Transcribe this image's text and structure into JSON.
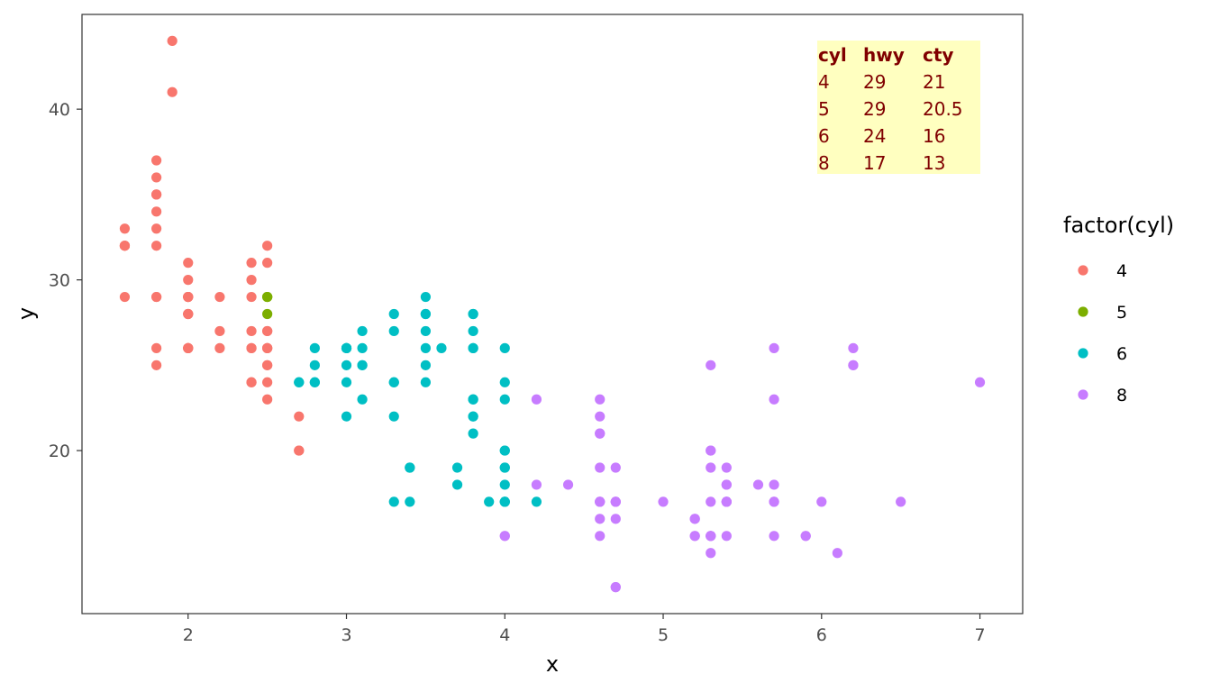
{
  "chart_data": {
    "type": "scatter",
    "xlabel": "x",
    "ylabel": "y",
    "xlim": [
      1.33,
      7.27
    ],
    "ylim": [
      10.45,
      45.55
    ],
    "x_ticks": [
      2,
      3,
      4,
      5,
      6,
      7
    ],
    "y_ticks": [
      20,
      30,
      40
    ],
    "grid": false,
    "legend": {
      "title": "factor(cyl)",
      "placement": "right",
      "entries": [
        "4",
        "5",
        "6",
        "8"
      ]
    },
    "series": [
      {
        "name": "4",
        "color": "#F8766D",
        "points": [
          [
            1.8,
            29
          ],
          [
            1.8,
            29
          ],
          [
            2.0,
            31
          ],
          [
            2.0,
            30
          ],
          [
            1.8,
            26
          ],
          [
            1.8,
            25
          ],
          [
            2.0,
            28
          ],
          [
            2.0,
            28
          ],
          [
            2.0,
            29
          ],
          [
            2.0,
            29
          ],
          [
            2.0,
            26
          ],
          [
            2.0,
            26
          ],
          [
            2.4,
            27
          ],
          [
            2.4,
            30
          ],
          [
            2.4,
            31
          ],
          [
            2.4,
            26
          ],
          [
            1.6,
            32
          ],
          [
            1.6,
            32
          ],
          [
            1.6,
            29
          ],
          [
            1.6,
            32
          ],
          [
            1.6,
            33
          ],
          [
            1.8,
            32
          ],
          [
            1.8,
            35
          ],
          [
            1.8,
            33
          ],
          [
            1.8,
            34
          ],
          [
            1.8,
            37
          ],
          [
            1.8,
            36
          ],
          [
            1.9,
            44
          ],
          [
            1.9,
            41
          ],
          [
            2.0,
            29
          ],
          [
            2.0,
            26
          ],
          [
            2.0,
            29
          ],
          [
            2.0,
            29
          ],
          [
            2.0,
            28
          ],
          [
            2.0,
            29
          ],
          [
            2.2,
            26
          ],
          [
            2.2,
            27
          ],
          [
            2.4,
            24
          ],
          [
            2.4,
            24
          ],
          [
            2.4,
            26
          ],
          [
            2.4,
            29
          ],
          [
            2.5,
            25
          ],
          [
            2.5,
            27
          ],
          [
            2.5,
            25
          ],
          [
            2.5,
            27
          ],
          [
            2.5,
            26
          ],
          [
            2.5,
            32
          ],
          [
            2.5,
            31
          ],
          [
            2.5,
            26
          ],
          [
            2.5,
            26
          ],
          [
            2.5,
            23
          ],
          [
            2.5,
            24
          ],
          [
            2.2,
            29
          ],
          [
            2.7,
            20
          ],
          [
            2.7,
            22
          ],
          [
            2.7,
            20
          ],
          [
            1.8,
            35
          ],
          [
            2.0,
            26
          ]
        ]
      },
      {
        "name": "5",
        "color": "#7CAE00",
        "points": [
          [
            2.5,
            29
          ],
          [
            2.5,
            29
          ],
          [
            2.5,
            28
          ],
          [
            2.5,
            29
          ]
        ]
      },
      {
        "name": "6",
        "color": "#00BFC4",
        "points": [
          [
            2.8,
            26
          ],
          [
            3.1,
            27
          ],
          [
            3.1,
            25
          ],
          [
            2.8,
            24
          ],
          [
            3.1,
            25
          ],
          [
            3.5,
            24
          ],
          [
            3.5,
            25
          ],
          [
            3.8,
            26
          ],
          [
            3.8,
            27
          ],
          [
            3.0,
            26
          ],
          [
            3.3,
            24
          ],
          [
            3.3,
            24
          ],
          [
            3.3,
            22
          ],
          [
            3.8,
            22
          ],
          [
            3.8,
            22
          ],
          [
            3.8,
            21
          ],
          [
            3.3,
            17
          ],
          [
            4.0,
            19
          ],
          [
            4.0,
            18
          ],
          [
            4.0,
            17
          ],
          [
            4.0,
            17
          ],
          [
            4.0,
            19
          ],
          [
            4.0,
            20
          ],
          [
            4.0,
            20
          ],
          [
            4.2,
            17
          ],
          [
            3.7,
            19
          ],
          [
            3.7,
            18
          ],
          [
            4.0,
            17
          ],
          [
            3.4,
            17
          ],
          [
            3.4,
            19
          ],
          [
            3.9,
            17
          ],
          [
            2.8,
            25
          ],
          [
            2.8,
            24
          ],
          [
            3.1,
            23
          ],
          [
            3.0,
            22
          ],
          [
            3.0,
            24
          ],
          [
            3.5,
            26
          ],
          [
            3.5,
            29
          ],
          [
            3.5,
            28
          ],
          [
            3.6,
            26
          ],
          [
            3.5,
            27
          ],
          [
            3.5,
            28
          ],
          [
            3.8,
            28
          ],
          [
            3.8,
            28
          ],
          [
            3.8,
            26
          ],
          [
            3.3,
            27
          ],
          [
            3.3,
            28
          ],
          [
            3.8,
            23
          ],
          [
            3.8,
            23
          ],
          [
            4.0,
            26
          ],
          [
            4.0,
            24
          ],
          [
            4.0,
            23
          ],
          [
            3.0,
            26
          ],
          [
            3.0,
            25
          ],
          [
            3.0,
            26
          ],
          [
            3.0,
            26
          ],
          [
            3.1,
            26
          ],
          [
            2.7,
            24
          ],
          [
            2.7,
            24
          ],
          [
            3.4,
            19
          ]
        ]
      },
      {
        "name": "8",
        "color": "#C77CFF",
        "points": [
          [
            5.7,
            26
          ],
          [
            5.7,
            23
          ],
          [
            6.2,
            26
          ],
          [
            6.2,
            25
          ],
          [
            7.0,
            24
          ],
          [
            5.3,
            17
          ],
          [
            5.3,
            15
          ],
          [
            5.7,
            17
          ],
          [
            6.5,
            17
          ],
          [
            4.6,
            16
          ],
          [
            5.3,
            15
          ],
          [
            5.3,
            15
          ],
          [
            5.4,
            17
          ],
          [
            5.4,
            17
          ],
          [
            4.7,
            12
          ],
          [
            4.7,
            12
          ],
          [
            4.7,
            17
          ],
          [
            5.2,
            16
          ],
          [
            5.2,
            15
          ],
          [
            5.2,
            16
          ],
          [
            5.9,
            15
          ],
          [
            4.7,
            16
          ],
          [
            5.2,
            15
          ],
          [
            5.9,
            15
          ],
          [
            4.7,
            19
          ],
          [
            4.7,
            17
          ],
          [
            5.4,
            17
          ],
          [
            5.4,
            18
          ],
          [
            5.4,
            19
          ],
          [
            4.4,
            18
          ],
          [
            4.6,
            17
          ],
          [
            4.6,
            15
          ],
          [
            5.4,
            17
          ],
          [
            5.4,
            15
          ],
          [
            4.6,
            21
          ],
          [
            5.3,
            20
          ],
          [
            5.3,
            15
          ],
          [
            5.3,
            14
          ],
          [
            4.0,
            15
          ],
          [
            4.0,
            15
          ],
          [
            4.6,
            17
          ],
          [
            5.0,
            17
          ],
          [
            4.2,
            18
          ],
          [
            4.2,
            23
          ],
          [
            4.6,
            22
          ],
          [
            4.6,
            23
          ],
          [
            4.6,
            19
          ],
          [
            4.6,
            17
          ],
          [
            5.4,
            18
          ],
          [
            5.6,
            18
          ],
          [
            5.7,
            17
          ],
          [
            6.0,
            17
          ],
          [
            5.7,
            18
          ],
          [
            6.1,
            14
          ],
          [
            5.3,
            19
          ],
          [
            5.3,
            20
          ],
          [
            5.3,
            25
          ],
          [
            6.2,
            25
          ],
          [
            5.7,
            15
          ],
          [
            4.7,
            17
          ],
          [
            4.6,
            21
          ]
        ]
      }
    ],
    "annotation_table": {
      "background": "#FFFFC0",
      "text_color": "#800000",
      "position": "top-right",
      "headers": [
        "cyl",
        "hwy",
        "cty"
      ],
      "rows": [
        [
          "4",
          "29",
          "21"
        ],
        [
          "5",
          "29",
          "20.5"
        ],
        [
          "6",
          "24",
          "16"
        ],
        [
          "8",
          "17",
          "13"
        ]
      ]
    }
  }
}
